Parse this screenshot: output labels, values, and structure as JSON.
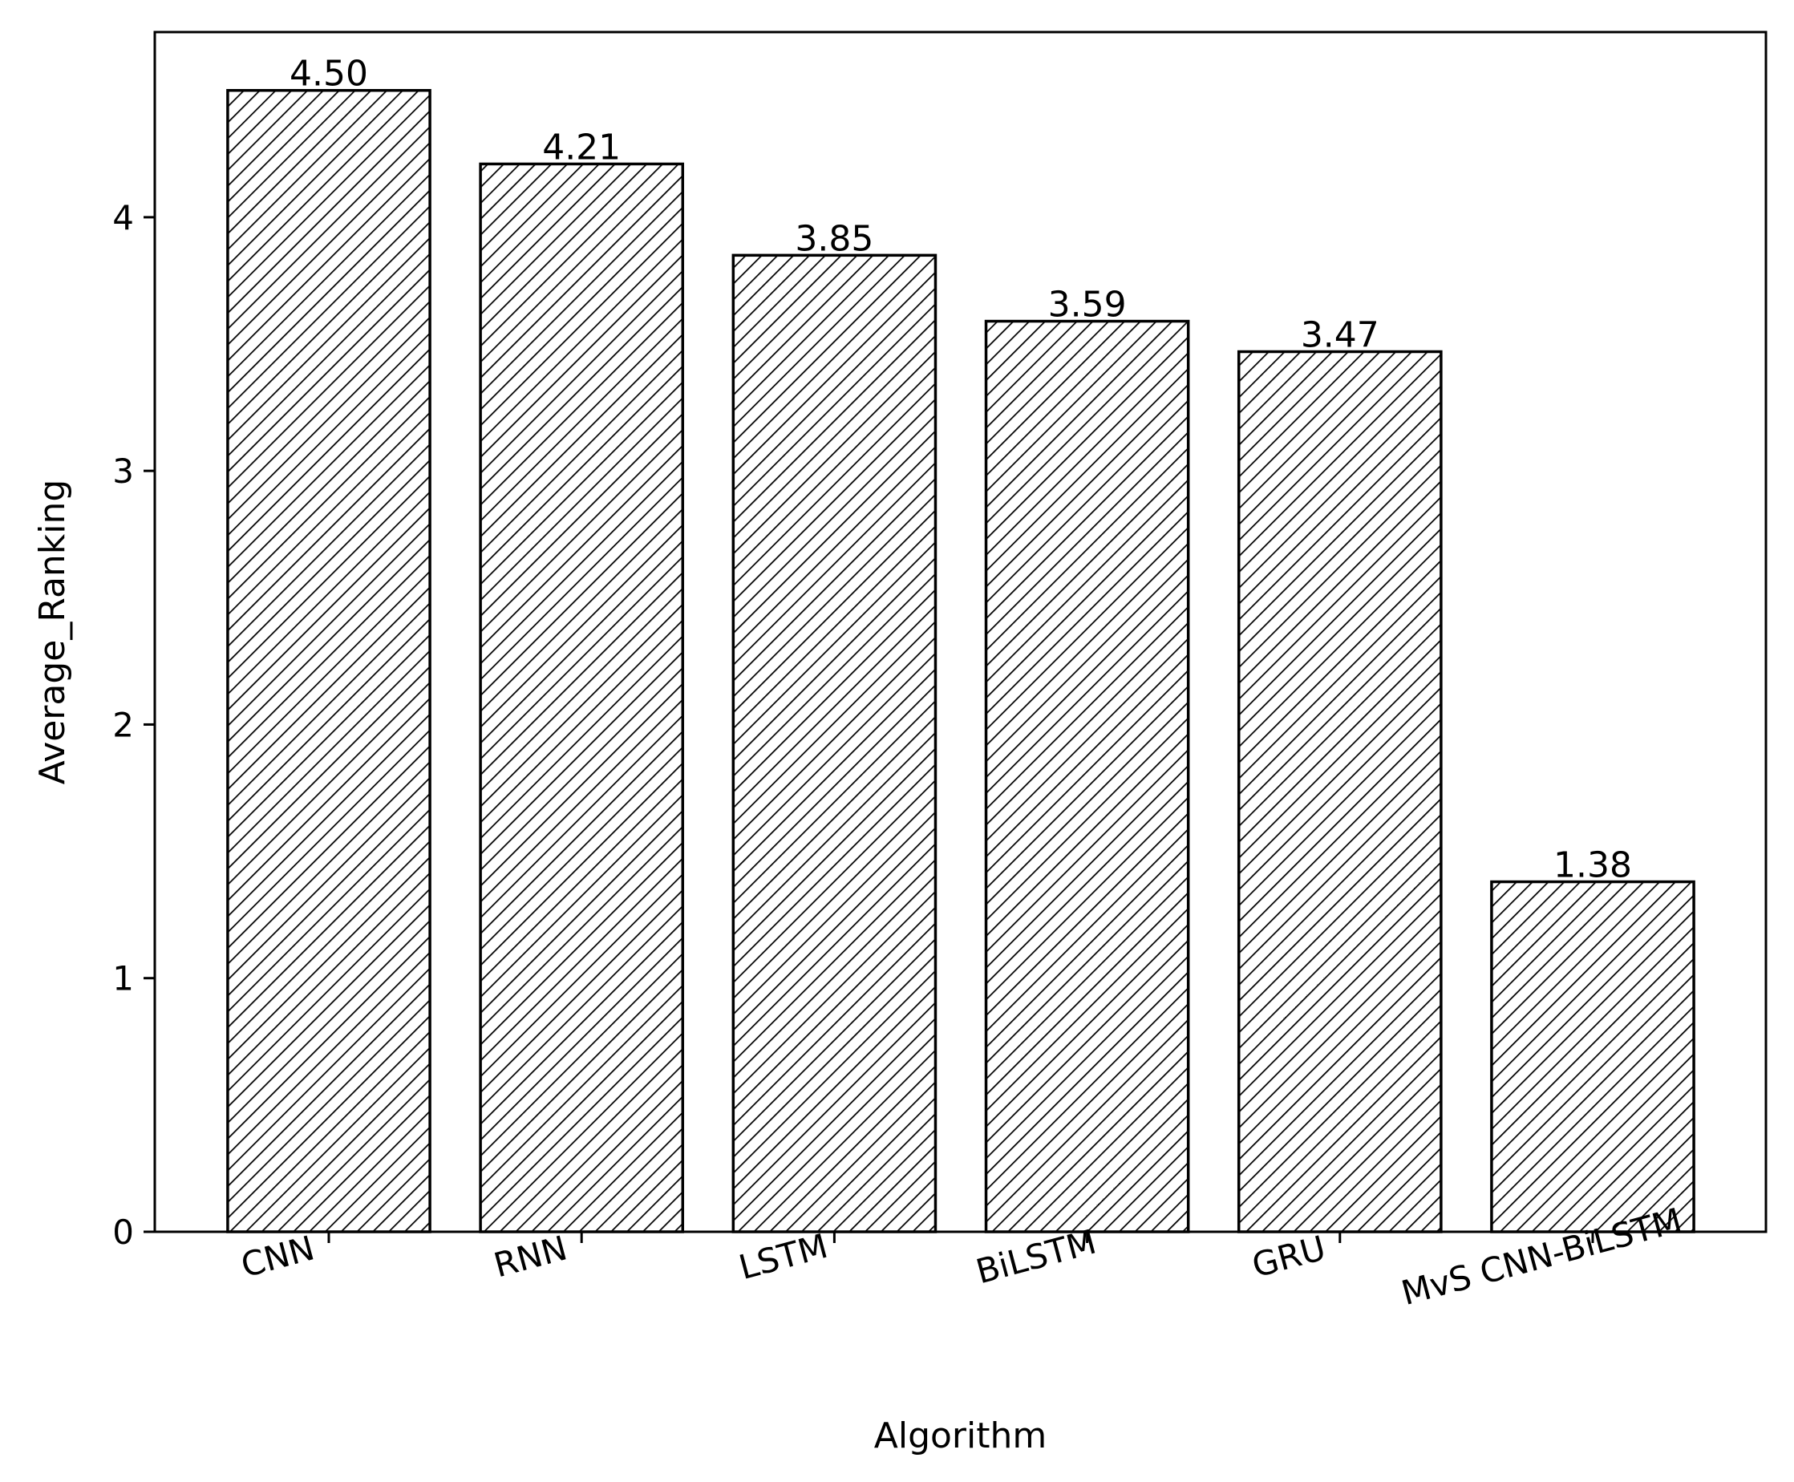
{
  "chart_data": {
    "type": "bar",
    "title": "",
    "xlabel": "Algorithm",
    "ylabel": "Average_Ranking",
    "categories": [
      "CNN",
      "RNN",
      "LSTM",
      "BiLSTM",
      "GRU",
      "MvS CNN-BiLSTM"
    ],
    "values": [
      4.5,
      4.21,
      3.85,
      3.59,
      3.47,
      1.38
    ],
    "value_labels": [
      "4.50",
      "4.21",
      "3.85",
      "3.59",
      "3.47",
      "1.38"
    ],
    "ylim": [
      0,
      4.73
    ],
    "yticks": [
      0,
      1,
      2,
      3,
      4
    ],
    "ytick_labels": [
      "0",
      "1",
      "2",
      "3",
      "4"
    ],
    "grid": false,
    "bar_fill": "#ffffff",
    "bar_edge": "#000000",
    "hatch": "diagonal"
  }
}
